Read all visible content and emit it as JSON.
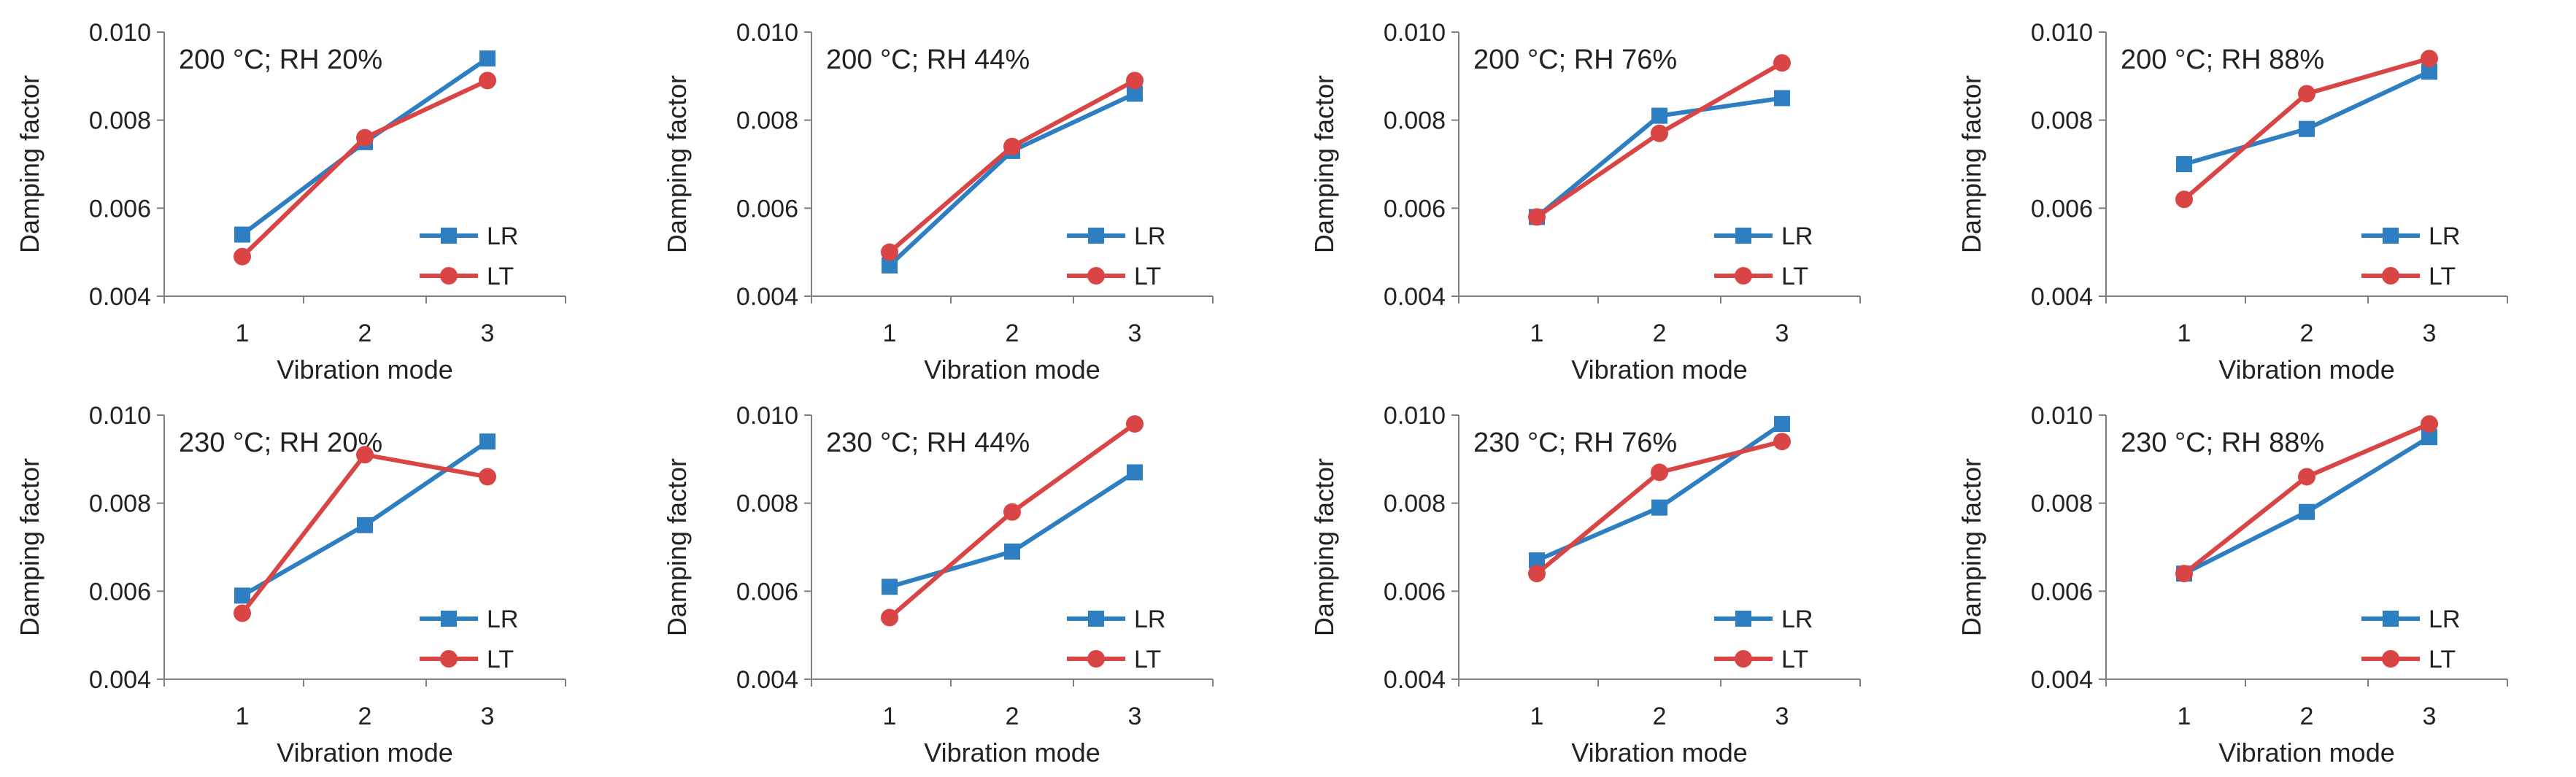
{
  "chart_data": [
    {
      "type": "line",
      "panel_label": "200 °C; RH 20%",
      "xlabel": "Vibration mode",
      "ylabel": "Damping factor",
      "categories": [
        "1",
        "2",
        "3"
      ],
      "y_ticks": [
        "0.004",
        "0.006",
        "0.008",
        "0.010"
      ],
      "ylim": [
        0.004,
        0.01
      ],
      "series": [
        {
          "name": "LR",
          "values": [
            0.0054,
            0.0075,
            0.0094
          ]
        },
        {
          "name": "LT",
          "values": [
            0.0049,
            0.0076,
            0.0089
          ]
        }
      ]
    },
    {
      "type": "line",
      "panel_label": "200 °C; RH 44%",
      "xlabel": "Vibration mode",
      "ylabel": "Damping factor",
      "categories": [
        "1",
        "2",
        "3"
      ],
      "y_ticks": [
        "0.004",
        "0.006",
        "0.008",
        "0.010"
      ],
      "ylim": [
        0.004,
        0.01
      ],
      "series": [
        {
          "name": "LR",
          "values": [
            0.0047,
            0.0073,
            0.0086
          ]
        },
        {
          "name": "LT",
          "values": [
            0.005,
            0.0074,
            0.0089
          ]
        }
      ]
    },
    {
      "type": "line",
      "panel_label": "200 °C; RH 76%",
      "xlabel": "Vibration mode",
      "ylabel": "Damping factor",
      "categories": [
        "1",
        "2",
        "3"
      ],
      "y_ticks": [
        "0.004",
        "0.006",
        "0.008",
        "0.010"
      ],
      "ylim": [
        0.004,
        0.01
      ],
      "series": [
        {
          "name": "LR",
          "values": [
            0.0058,
            0.0081,
            0.0085
          ]
        },
        {
          "name": "LT",
          "values": [
            0.0058,
            0.0077,
            0.0093
          ]
        }
      ]
    },
    {
      "type": "line",
      "panel_label": "200 °C; RH 88%",
      "xlabel": "Vibration mode",
      "ylabel": "Damping factor",
      "categories": [
        "1",
        "2",
        "3"
      ],
      "y_ticks": [
        "0.004",
        "0.006",
        "0.008",
        "0.010"
      ],
      "ylim": [
        0.004,
        0.01
      ],
      "series": [
        {
          "name": "LR",
          "values": [
            0.007,
            0.0078,
            0.0091
          ]
        },
        {
          "name": "LT",
          "values": [
            0.0062,
            0.0086,
            0.0094
          ]
        }
      ]
    },
    {
      "type": "line",
      "panel_label": "230 °C; RH 20%",
      "xlabel": "Vibration mode",
      "ylabel": "Damping factor",
      "categories": [
        "1",
        "2",
        "3"
      ],
      "y_ticks": [
        "0.004",
        "0.006",
        "0.008",
        "0.010"
      ],
      "ylim": [
        0.004,
        0.01
      ],
      "series": [
        {
          "name": "LR",
          "values": [
            0.0059,
            0.0075,
            0.0094
          ]
        },
        {
          "name": "LT",
          "values": [
            0.0055,
            0.0091,
            0.0086
          ]
        }
      ]
    },
    {
      "type": "line",
      "panel_label": "230 °C; RH 44%",
      "xlabel": "Vibration mode",
      "ylabel": "Damping factor",
      "categories": [
        "1",
        "2",
        "3"
      ],
      "y_ticks": [
        "0.004",
        "0.006",
        "0.008",
        "0.010"
      ],
      "ylim": [
        0.004,
        0.01
      ],
      "series": [
        {
          "name": "LR",
          "values": [
            0.0061,
            0.0069,
            0.0087
          ]
        },
        {
          "name": "LT",
          "values": [
            0.0054,
            0.0078,
            0.0098
          ]
        }
      ]
    },
    {
      "type": "line",
      "panel_label": "230 °C; RH 76%",
      "xlabel": "Vibration mode",
      "ylabel": "Damping factor",
      "categories": [
        "1",
        "2",
        "3"
      ],
      "y_ticks": [
        "0.004",
        "0.006",
        "0.008",
        "0.010"
      ],
      "ylim": [
        0.004,
        0.01
      ],
      "series": [
        {
          "name": "LR",
          "values": [
            0.0067,
            0.0079,
            0.0098
          ]
        },
        {
          "name": "LT",
          "values": [
            0.0064,
            0.0087,
            0.0094
          ]
        }
      ]
    },
    {
      "type": "line",
      "panel_label": "230 °C; RH 88%",
      "xlabel": "Vibration mode",
      "ylabel": "Damping factor",
      "categories": [
        "1",
        "2",
        "3"
      ],
      "y_ticks": [
        "0.004",
        "0.006",
        "0.008",
        "0.010"
      ],
      "ylim": [
        0.004,
        0.01
      ],
      "series": [
        {
          "name": "LR",
          "values": [
            0.0064,
            0.0078,
            0.0095
          ]
        },
        {
          "name": "LT",
          "values": [
            0.0064,
            0.0086,
            0.0098
          ]
        }
      ]
    }
  ],
  "colors": {
    "LR": "#2e7fc1",
    "LT": "#d94545",
    "axis": "#7f7f7f",
    "text": "#222222"
  }
}
